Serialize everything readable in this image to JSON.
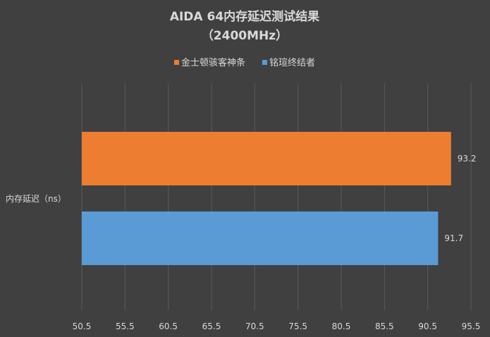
{
  "chart_data": {
    "type": "bar",
    "orientation": "horizontal",
    "title": "AIDA 64内存延迟测试结果",
    "subtitle": "（2400MHz）",
    "categories": [
      "内存延迟（ns）"
    ],
    "series": [
      {
        "name": "金士顿骇客神条",
        "values": [
          93.2
        ],
        "color": "#ed7d31"
      },
      {
        "name": "铭瑄终结者",
        "values": [
          91.7
        ],
        "color": "#5b9bd5"
      }
    ],
    "xlim": [
      50.5,
      95.5
    ],
    "xticks": [
      "50.5",
      "55.5",
      "60.5",
      "65.5",
      "70.5",
      "75.5",
      "80.5",
      "85.5",
      "90.5",
      "95.5"
    ],
    "grid": true,
    "legend_position": "top",
    "xlabel": "",
    "ylabel": ""
  }
}
